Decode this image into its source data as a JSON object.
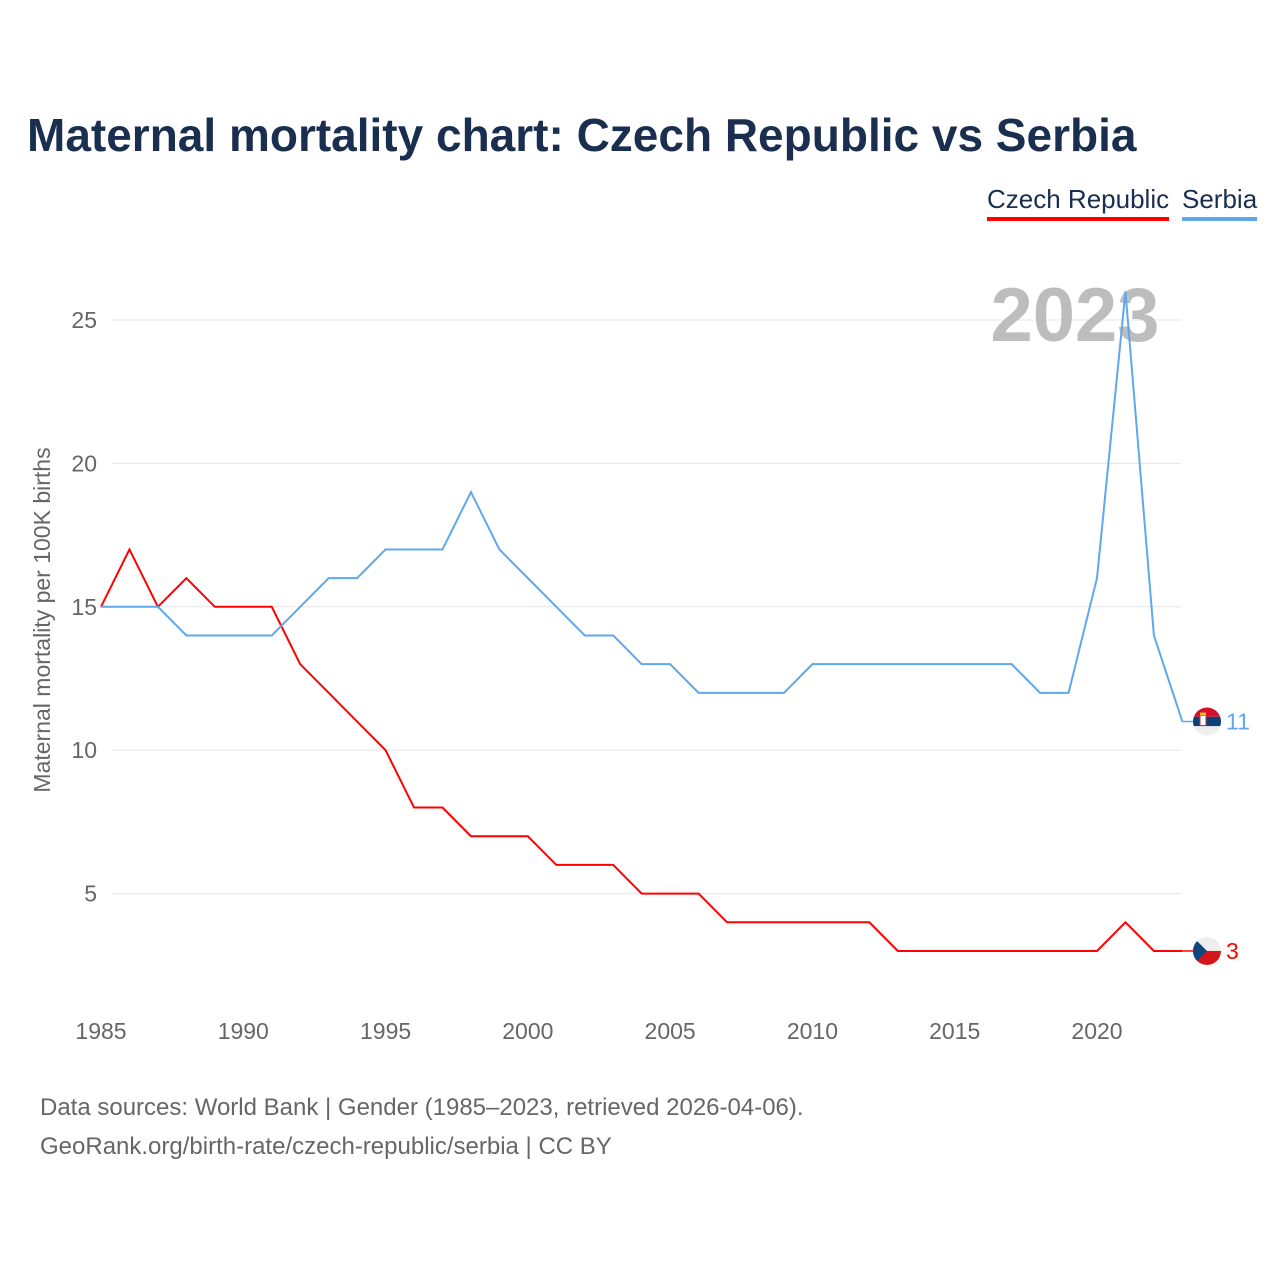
{
  "chart_data": {
    "type": "line",
    "title": "Maternal mortality chart: Czech Republic vs Serbia",
    "ylabel": "Maternal mortality per 100K births",
    "xlabel": "",
    "year_watermark": "2023",
    "x": [
      1985,
      1986,
      1987,
      1988,
      1989,
      1990,
      1991,
      1992,
      1993,
      1994,
      1995,
      1996,
      1997,
      1998,
      1999,
      2000,
      2001,
      2002,
      2003,
      2004,
      2005,
      2006,
      2007,
      2008,
      2009,
      2010,
      2011,
      2012,
      2013,
      2014,
      2015,
      2016,
      2017,
      2018,
      2019,
      2020,
      2021,
      2022,
      2023
    ],
    "xlim": [
      1985,
      2023
    ],
    "ylim": [
      0,
      27
    ],
    "xticks": [
      "1985",
      "1990",
      "1995",
      "2000",
      "2005",
      "2010",
      "2015",
      "2020"
    ],
    "yticks": [
      "5",
      "10",
      "15",
      "20",
      "25"
    ],
    "grid": true,
    "legend_position": "top-right",
    "series": [
      {
        "name": "Czech Republic",
        "color": "#ff0000",
        "end_label": "3",
        "flag": "czech-flag",
        "values": [
          15,
          17,
          15,
          16,
          15,
          15,
          15,
          13,
          12,
          11,
          10,
          8,
          8,
          7,
          7,
          7,
          6,
          6,
          6,
          5,
          5,
          5,
          4,
          4,
          4,
          4,
          4,
          4,
          3,
          3,
          3,
          3,
          3,
          3,
          3,
          3,
          4,
          3,
          3
        ]
      },
      {
        "name": "Serbia",
        "color": "#5fa8ec",
        "end_label": "11",
        "flag": "serbia-flag",
        "values": [
          15,
          15,
          15,
          14,
          14,
          14,
          14,
          15,
          16,
          16,
          17,
          17,
          17,
          19,
          17,
          16,
          15,
          14,
          14,
          13,
          13,
          12,
          12,
          12,
          12,
          13,
          13,
          13,
          13,
          13,
          13,
          13,
          13,
          12,
          12,
          16,
          26,
          14,
          11
        ]
      }
    ]
  },
  "source": {
    "line1": "Data sources: World Bank | Gender (1985–2023, retrieved 2026-04-06).",
    "line2": "GeoRank.org/birth-rate/czech-republic/serbia | CC BY"
  }
}
